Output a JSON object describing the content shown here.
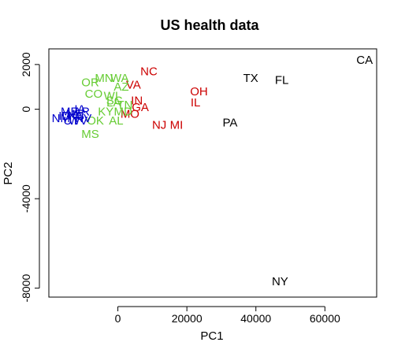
{
  "chart_data": {
    "type": "scatter",
    "title": "US health data",
    "xlabel": "PC1",
    "ylabel": "PC2",
    "xlim": [
      -20000,
      75000
    ],
    "ylim": [
      -8400,
      2700
    ],
    "xticks": [
      {
        "value": 0,
        "label": "0"
      },
      {
        "value": 20000,
        "label": "20000"
      },
      {
        "value": 40000,
        "label": "40000"
      },
      {
        "value": 60000,
        "label": "60000"
      }
    ],
    "yticks": [
      {
        "value": 2000,
        "label": "2000"
      },
      {
        "value": 0,
        "label": "0"
      },
      {
        "value": -4000,
        "label": "-4000"
      },
      {
        "value": -8000,
        "label": "-8000"
      }
    ],
    "grid": false,
    "legend": "none",
    "group_colors": {
      "black": "#000000",
      "red": "#cc0000",
      "green": "#66cc33",
      "blue": "#0000cc"
    },
    "series": [
      {
        "color_key": "black",
        "points": [
          {
            "label": "CA",
            "x": 71500,
            "y": 2200
          },
          {
            "label": "TX",
            "x": 38500,
            "y": 1400
          },
          {
            "label": "FL",
            "x": 47500,
            "y": 1300
          },
          {
            "label": "PA",
            "x": 32500,
            "y": -600
          },
          {
            "label": "NY",
            "x": 47000,
            "y": -7700
          }
        ]
      },
      {
        "color_key": "red",
        "points": [
          {
            "label": "NC",
            "x": 9000,
            "y": 1700
          },
          {
            "label": "VA",
            "x": 4500,
            "y": 1100
          },
          {
            "label": "OH",
            "x": 23500,
            "y": 800
          },
          {
            "label": "IL",
            "x": 22500,
            "y": 300
          },
          {
            "label": "IN",
            "x": 5500,
            "y": 400
          },
          {
            "label": "GA",
            "x": 6500,
            "y": 100
          },
          {
            "label": "MO",
            "x": 3500,
            "y": -200
          },
          {
            "label": "NJ",
            "x": 12000,
            "y": -700
          },
          {
            "label": "MI",
            "x": 17000,
            "y": -700
          }
        ]
      },
      {
        "color_key": "green",
        "points": [
          {
            "label": "MN",
            "x": -4000,
            "y": 1400
          },
          {
            "label": "WA",
            "x": 500,
            "y": 1400
          },
          {
            "label": "OR",
            "x": -8000,
            "y": 1200
          },
          {
            "label": "CO",
            "x": -7000,
            "y": 700
          },
          {
            "label": "AZ",
            "x": 1000,
            "y": 1000
          },
          {
            "label": "SC",
            "x": -1000,
            "y": 400
          },
          {
            "label": "LA",
            "x": -1200,
            "y": 300
          },
          {
            "label": "KY",
            "x": -3500,
            "y": -100
          },
          {
            "label": "AL",
            "x": -500,
            "y": -500
          },
          {
            "label": "OK",
            "x": -6500,
            "y": -500
          },
          {
            "label": "MS",
            "x": -8000,
            "y": -1100
          },
          {
            "label": "TN",
            "x": 2000,
            "y": 200
          },
          {
            "label": "WI",
            "x": -2000,
            "y": 600
          },
          {
            "label": "MD",
            "x": 1500,
            "y": -100
          }
        ]
      },
      {
        "color_key": "blue",
        "points": [
          {
            "label": "NM",
            "x": -16500,
            "y": -400
          },
          {
            "label": "ID",
            "x": -15500,
            "y": -300
          },
          {
            "label": "ME",
            "x": -14000,
            "y": -100
          },
          {
            "label": "UT",
            "x": -13500,
            "y": -500
          },
          {
            "label": "NE",
            "x": -12500,
            "y": -200
          },
          {
            "label": "WV",
            "x": -11500,
            "y": -500
          },
          {
            "label": "NV",
            "x": -10000,
            "y": -400
          },
          {
            "label": "KS",
            "x": -12000,
            "y": -300
          },
          {
            "label": "AR",
            "x": -10500,
            "y": -100
          },
          {
            "label": "IA",
            "x": -11000,
            "y": 0
          }
        ]
      }
    ]
  }
}
